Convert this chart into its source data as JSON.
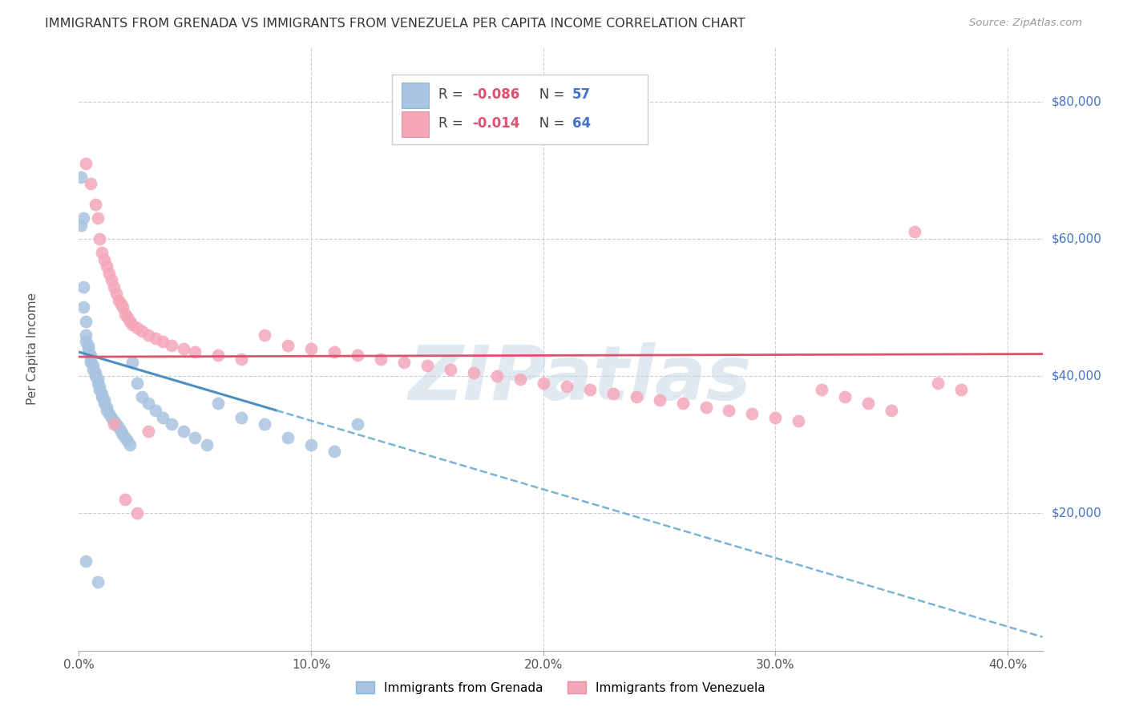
{
  "title": "IMMIGRANTS FROM GRENADA VS IMMIGRANTS FROM VENEZUELA PER CAPITA INCOME CORRELATION CHART",
  "source": "Source: ZipAtlas.com",
  "ylabel": "Per Capita Income",
  "color_grenada": "#a8c4e0",
  "color_venezuela": "#f4a7b9",
  "trendline_grenada_solid_color": "#4d8fbf",
  "trendline_dashed_color": "#7ab3d4",
  "trendline_venezuela_solid_color": "#d9546a",
  "watermark": "ZIPatlas",
  "legend_r1": "-0.086",
  "legend_n1": "57",
  "legend_r2": "-0.014",
  "legend_n2": "64",
  "grenada_x": [
    0.001,
    0.001,
    0.002,
    0.002,
    0.002,
    0.003,
    0.003,
    0.003,
    0.004,
    0.004,
    0.004,
    0.005,
    0.005,
    0.005,
    0.006,
    0.006,
    0.007,
    0.007,
    0.008,
    0.008,
    0.009,
    0.009,
    0.01,
    0.01,
    0.011,
    0.011,
    0.012,
    0.012,
    0.013,
    0.014,
    0.015,
    0.016,
    0.017,
    0.018,
    0.019,
    0.02,
    0.021,
    0.022,
    0.023,
    0.025,
    0.027,
    0.03,
    0.033,
    0.036,
    0.04,
    0.045,
    0.05,
    0.055,
    0.06,
    0.07,
    0.08,
    0.09,
    0.1,
    0.11,
    0.12,
    0.008,
    0.003
  ],
  "grenada_y": [
    69000,
    62000,
    63000,
    53000,
    50000,
    48000,
    46000,
    45000,
    44500,
    44000,
    43500,
    43000,
    42500,
    42000,
    41500,
    41000,
    40500,
    40000,
    39500,
    39000,
    38500,
    38000,
    37500,
    37000,
    36500,
    36000,
    35500,
    35000,
    34500,
    34000,
    33500,
    33000,
    32500,
    32000,
    31500,
    31000,
    30500,
    30000,
    42000,
    39000,
    37000,
    36000,
    35000,
    34000,
    33000,
    32000,
    31000,
    30000,
    36000,
    34000,
    33000,
    31000,
    30000,
    29000,
    33000,
    10000,
    13000
  ],
  "venezuela_x": [
    0.003,
    0.005,
    0.007,
    0.008,
    0.009,
    0.01,
    0.011,
    0.012,
    0.013,
    0.014,
    0.015,
    0.016,
    0.017,
    0.018,
    0.019,
    0.02,
    0.021,
    0.022,
    0.023,
    0.025,
    0.027,
    0.03,
    0.033,
    0.036,
    0.04,
    0.045,
    0.05,
    0.06,
    0.07,
    0.08,
    0.09,
    0.1,
    0.11,
    0.12,
    0.13,
    0.14,
    0.15,
    0.16,
    0.17,
    0.18,
    0.19,
    0.2,
    0.21,
    0.22,
    0.23,
    0.24,
    0.25,
    0.26,
    0.27,
    0.28,
    0.29,
    0.3,
    0.31,
    0.32,
    0.33,
    0.34,
    0.35,
    0.36,
    0.37,
    0.38,
    0.015,
    0.02,
    0.025,
    0.03
  ],
  "venezuela_y": [
    71000,
    68000,
    65000,
    63000,
    60000,
    58000,
    57000,
    56000,
    55000,
    54000,
    53000,
    52000,
    51000,
    50500,
    50000,
    49000,
    48500,
    48000,
    47500,
    47000,
    46500,
    46000,
    45500,
    45000,
    44500,
    44000,
    43500,
    43000,
    42500,
    46000,
    44500,
    44000,
    43500,
    43000,
    42500,
    42000,
    41500,
    41000,
    40500,
    40000,
    39500,
    39000,
    38500,
    38000,
    37500,
    37000,
    36500,
    36000,
    35500,
    35000,
    34500,
    34000,
    33500,
    38000,
    37000,
    36000,
    35000,
    61000,
    39000,
    38000,
    33000,
    22000,
    20000,
    32000
  ],
  "ylim": [
    0,
    88000
  ],
  "xlim_max": 0.415
}
